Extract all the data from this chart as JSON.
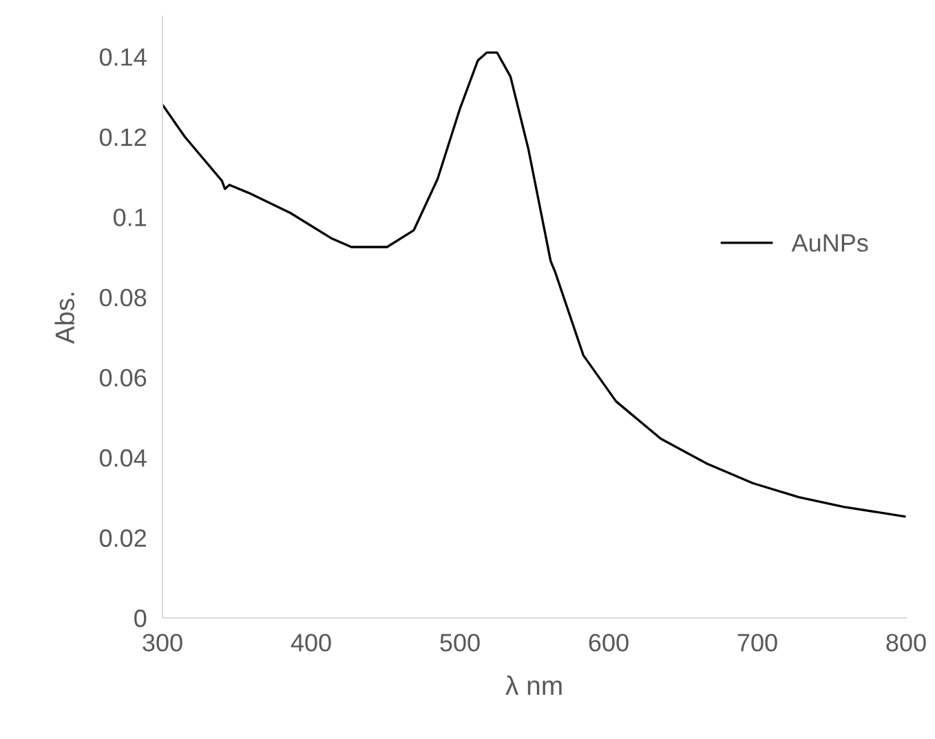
{
  "chart_data": {
    "type": "line",
    "xlabel": "λ nm",
    "ylabel": "Abs.",
    "xlim": [
      300,
      800
    ],
    "xticks": [
      300,
      400,
      500,
      600,
      700,
      800
    ],
    "ylim": [
      0,
      0.15
    ],
    "yticks": [
      0,
      0.02,
      0.04,
      0.06,
      0.08,
      {
        "value": 0.1,
        "label": "0.1"
      },
      0.12,
      0.14
    ],
    "grid": false,
    "legend": "right",
    "marker": "none",
    "line_style": "solid",
    "series": [
      {
        "name": "AuNPs",
        "color": "#000000",
        "x": [
          300,
          315,
          340,
          342,
          345,
          358,
          386,
          414,
          427,
          451,
          469,
          485,
          500,
          512,
          518,
          525,
          534,
          546,
          561,
          564,
          583,
          605,
          635,
          666,
          697,
          728,
          758,
          799
        ],
        "values": [
          0.128,
          0.12,
          0.109,
          0.107,
          0.108,
          0.106,
          0.101,
          0.0946,
          0.0925,
          0.0925,
          0.0967,
          0.1095,
          0.127,
          0.139,
          0.141,
          0.141,
          0.135,
          0.117,
          0.089,
          0.0863,
          0.0655,
          0.054,
          0.0447,
          0.0385,
          0.0336,
          0.0301,
          0.0277,
          0.0253
        ]
      }
    ]
  }
}
